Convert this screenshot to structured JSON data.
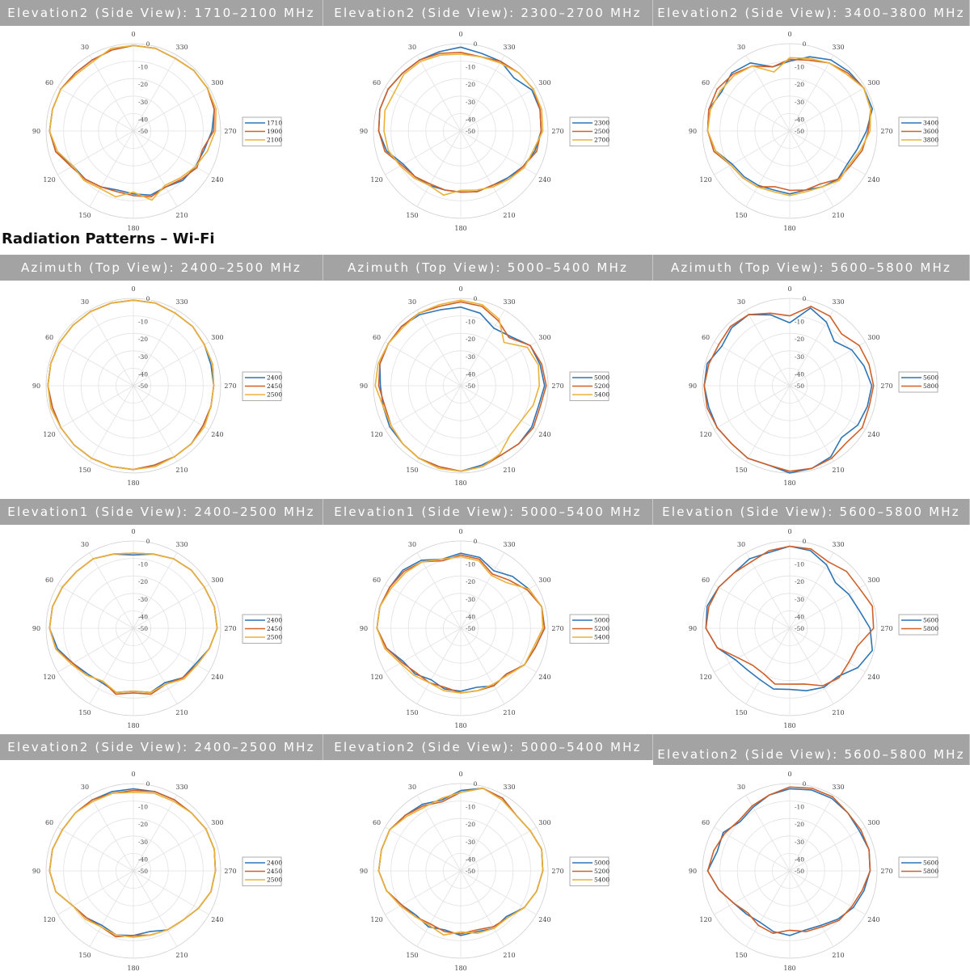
{
  "heading": "Radiation Patterns – Wi-Fi",
  "colors": [
    "#2e75b6",
    "#d0602a",
    "#e9b23a"
  ],
  "angle_ticks": [
    "0",
    "30",
    "60",
    "90",
    "120",
    "150",
    "180",
    "210",
    "240",
    "270",
    "300",
    "330"
  ],
  "radial_ticks": [
    "0",
    "-10",
    "-20",
    "-30",
    "-40",
    "-50"
  ],
  "chart_data": [
    {
      "type": "polar",
      "title": "Elevation2 (Side View): 1710–2100 MHz",
      "rlim": [
        -50,
        0
      ],
      "angle_step": 15,
      "legend": "right",
      "series": [
        {
          "name": "1710",
          "values": [
            -1,
            -2,
            -3,
            -3,
            -2,
            -2,
            -2,
            -4,
            -10,
            -11,
            -13,
            -15,
            -14,
            -12,
            -13,
            -10,
            -9,
            -8,
            -5,
            -2,
            -1,
            -1,
            -2,
            -1
          ]
        },
        {
          "name": "1900",
          "values": [
            -1,
            -2,
            -3,
            -3,
            -2,
            -2,
            -2,
            -4,
            -9,
            -11,
            -13,
            -14,
            -13,
            -11,
            -13,
            -11,
            -8,
            -9,
            -4,
            -2,
            -1,
            -1,
            -2,
            -1
          ]
        },
        {
          "name": "2100",
          "values": [
            -1,
            -1,
            -4,
            -4,
            -2,
            -2,
            -2,
            -5,
            -10,
            -10,
            -12,
            -11,
            -15,
            -9,
            -14,
            -12,
            -9,
            -6,
            -3,
            -1,
            -1,
            -1,
            -2,
            -1
          ]
        }
      ]
    },
    {
      "type": "polar",
      "title": "Elevation2 (Side View): 2300–2700 MHz",
      "rlim": [
        -50,
        0
      ],
      "angle_step": 15,
      "legend": "right",
      "series": [
        {
          "name": "2300",
          "values": [
            -2,
            -3,
            -3,
            -3,
            -2,
            -2,
            -3,
            -6,
            -12,
            -13,
            -14,
            -15,
            -15,
            -14,
            -14,
            -12,
            -9,
            -6,
            -4,
            -3,
            -3,
            -7,
            -4,
            -4
          ]
        },
        {
          "name": "2500",
          "values": [
            -5,
            -4,
            -3,
            -3,
            -2,
            -2,
            -3,
            -5,
            -11,
            -13,
            -15,
            -15,
            -15,
            -14,
            -14,
            -11,
            -9,
            -5,
            -4,
            -3,
            -2,
            -3,
            -4,
            -6
          ]
        },
        {
          "name": "2700",
          "values": [
            -6,
            -5,
            -4,
            -4,
            -6,
            -5,
            -6,
            -7,
            -10,
            -12,
            -14,
            -12,
            -16,
            -15,
            -13,
            -11,
            -8,
            -7,
            -3,
            -2,
            -2,
            -3,
            -5,
            -6
          ]
        }
      ]
    },
    {
      "type": "polar",
      "title": "Elevation2 (Side View): 3400–3800 MHz",
      "rlim": [
        -50,
        0
      ],
      "angle_step": 15,
      "legend": "right",
      "series": [
        {
          "name": "3400",
          "values": [
            -10,
            -12,
            -5,
            -3,
            -5,
            -2,
            -3,
            -6,
            -12,
            -13,
            -14,
            -15,
            -14,
            -15,
            -13,
            -11,
            -12,
            -10,
            -6,
            -1,
            -1,
            -2,
            -3,
            -6
          ]
        },
        {
          "name": "3600",
          "values": [
            -9,
            -12,
            -7,
            -4,
            -2,
            -2,
            -3,
            -5,
            -11,
            -12,
            -13,
            -17,
            -16,
            -15,
            -15,
            -11,
            -10,
            -7,
            -5,
            -2,
            -1,
            -3,
            -5,
            -8
          ]
        },
        {
          "name": "3800",
          "values": [
            -8,
            -15,
            -7,
            -5,
            -4,
            -3,
            -3,
            -6,
            -11,
            -12,
            -13,
            -14,
            -13,
            -14,
            -13,
            -10,
            -11,
            -8,
            -4,
            -2,
            -1,
            -4,
            -5,
            -7
          ]
        }
      ]
    },
    {
      "type": "polar",
      "title": "Azimuth (Top View): 2400–2500 MHz",
      "rlim": [
        -50,
        0
      ],
      "angle_step": 15,
      "legend": "right",
      "series": [
        {
          "name": "2400",
          "values": [
            -1,
            -1,
            -1,
            -1,
            -1,
            -1,
            -1,
            -2,
            -2,
            -2,
            -2,
            -2,
            -2,
            -3,
            -3,
            -3,
            -4,
            -4,
            -4,
            -4,
            -3,
            -2,
            -2,
            -1
          ]
        },
        {
          "name": "2450",
          "values": [
            -1,
            -1,
            -1,
            -1,
            -1,
            -1,
            -1,
            -2,
            -2,
            -2,
            -2,
            -2,
            -2,
            -3,
            -3,
            -3,
            -4,
            -4,
            -4,
            -3,
            -3,
            -2,
            -2,
            -1
          ]
        },
        {
          "name": "2500",
          "values": [
            -1,
            -1,
            -1,
            -1,
            -1,
            -1,
            -1,
            -1,
            -2,
            -2,
            -2,
            -2,
            -2,
            -2,
            -3,
            -3,
            -3,
            -4,
            -4,
            -3,
            -3,
            -2,
            -2,
            -1
          ]
        }
      ]
    },
    {
      "type": "polar",
      "title": "Azimuth (Top View): 5000–5400 MHz",
      "rlim": [
        -50,
        0
      ],
      "angle_step": 15,
      "legend": "right",
      "series": [
        {
          "name": "5000",
          "values": [
            -5,
            -5,
            -3,
            -2,
            -2,
            -2,
            -4,
            -4,
            -3,
            -3,
            -2,
            -2,
            -1,
            -3,
            -4,
            -3,
            -3,
            -4,
            -2,
            -3,
            -4,
            -10,
            -12,
            -7
          ]
        },
        {
          "name": "5200",
          "values": [
            -2,
            -3,
            -2,
            -2,
            -2,
            -2,
            -3,
            -5,
            -4,
            -3,
            -2,
            -2,
            -1,
            -2,
            -4,
            -3,
            -2,
            -3,
            -1,
            -2,
            -4,
            -11,
            -7,
            -3
          ]
        },
        {
          "name": "5400",
          "values": [
            -1,
            -2,
            -2,
            -3,
            -2,
            -1,
            -1,
            -4,
            -4,
            -3,
            -2,
            -1,
            -1,
            -2,
            -5,
            -10,
            -10,
            -7,
            -5,
            -4,
            -6,
            -15,
            -6,
            -2
          ]
        }
      ]
    },
    {
      "type": "polar",
      "title": "Azimuth (Top View): 5600–5800 MHz",
      "rlim": [
        -50,
        0
      ],
      "angle_step": 15,
      "legend": "right",
      "series": [
        {
          "name": "5600",
          "values": [
            -14,
            -8,
            -3,
            -3,
            -5,
            -1,
            -1,
            -2,
            -2,
            -3,
            -2,
            -3,
            0,
            -1,
            -3,
            -8,
            -5,
            -4,
            -3,
            -6,
            -9,
            -14,
            -8,
            -4
          ]
        },
        {
          "name": "5800",
          "values": [
            -10,
            -7,
            -3,
            -2,
            -3,
            -2,
            -1,
            -1,
            -2,
            -3,
            -2,
            -3,
            -1,
            -1,
            -2,
            -4,
            -2,
            -3,
            -2,
            -3,
            -4,
            -8,
            -4,
            -3
          ]
        }
      ]
    },
    {
      "type": "polar",
      "title": "Elevation1 (Side View): 2400–2500 MHz",
      "rlim": [
        -50,
        0
      ],
      "angle_step": 15,
      "legend": "right",
      "series": [
        {
          "name": "2400",
          "values": [
            -8,
            -6,
            -4,
            -4,
            -3,
            -2,
            -2,
            -5,
            -10,
            -13,
            -14,
            -12,
            -14,
            -12,
            -14,
            -10,
            -9,
            -5,
            -2,
            -2,
            -3,
            -3,
            -4,
            -6
          ]
        },
        {
          "name": "2450",
          "values": [
            -7,
            -6,
            -4,
            -4,
            -3,
            -2,
            -2,
            -4,
            -10,
            -12,
            -15,
            -11,
            -13,
            -11,
            -13,
            -10,
            -8,
            -5,
            -2,
            -2,
            -3,
            -3,
            -4,
            -6
          ]
        },
        {
          "name": "2500",
          "values": [
            -7,
            -6,
            -4,
            -4,
            -3,
            -2,
            -2,
            -4,
            -9,
            -12,
            -15,
            -12,
            -14,
            -12,
            -13,
            -9,
            -8,
            -5,
            -2,
            -2,
            -3,
            -3,
            -4,
            -6
          ]
        }
      ]
    },
    {
      "type": "polar",
      "title": "Elevation1 (Side View): 5000–5400 MHz",
      "rlim": [
        -50,
        0
      ],
      "angle_step": 15,
      "legend": "right",
      "series": [
        {
          "name": "5000",
          "values": [
            -7,
            -9,
            -5,
            -3,
            -3,
            -2,
            -2,
            -6,
            -12,
            -13,
            -16,
            -14,
            -14,
            -15,
            -12,
            -13,
            -8,
            -6,
            -2,
            -2,
            -5,
            -8,
            -12,
            -8
          ]
        },
        {
          "name": "5200",
          "values": [
            -8,
            -10,
            -6,
            -4,
            -3,
            -2,
            -2,
            -6,
            -11,
            -14,
            -14,
            -15,
            -13,
            -13,
            -12,
            -13,
            -8,
            -6,
            -2,
            -2,
            -6,
            -11,
            -14,
            -9
          ]
        },
        {
          "name": "5400",
          "values": [
            -9,
            -9,
            -6,
            -5,
            -4,
            -2,
            -2,
            -5,
            -10,
            -12,
            -14,
            -13,
            -13,
            -13,
            -13,
            -12,
            -8,
            -7,
            -3,
            -2,
            -5,
            -13,
            -15,
            -10
          ]
        }
      ]
    },
    {
      "type": "polar",
      "title": "Elevation (Side View): 5600–5800 MHz",
      "rlim": [
        -50,
        0
      ],
      "angle_step": 15,
      "legend": "right",
      "series": [
        {
          "name": "5600",
          "values": [
            -3,
            -5,
            -4,
            -5,
            -3,
            -1,
            -2,
            -7,
            -14,
            -16,
            -16,
            -14,
            -15,
            -13,
            -11,
            -11,
            -5,
            -1,
            -4,
            -9,
            -11,
            -13,
            -8,
            -4
          ]
        },
        {
          "name": "5800",
          "values": [
            -3,
            -4,
            -6,
            -5,
            -3,
            -2,
            -2,
            -7,
            -16,
            -20,
            -20,
            -17,
            -18,
            -17,
            -12,
            -10,
            -11,
            -10,
            -2,
            -1,
            -4,
            -4,
            -6,
            -3
          ]
        }
      ]
    },
    {
      "type": "polar",
      "title": "Elevation2 (Side View): 2400–2500 MHz",
      "rlim": [
        -50,
        0
      ],
      "angle_step": 15,
      "legend": "right",
      "series": [
        {
          "name": "2400",
          "values": [
            -3,
            -3,
            -3,
            -3,
            -3,
            -2,
            -2,
            -4,
            -10,
            -12,
            -14,
            -12,
            -13,
            -14,
            -11,
            -10,
            -7,
            -4,
            -3,
            -2,
            -2,
            -3,
            -3,
            -3
          ]
        },
        {
          "name": "2450",
          "values": [
            -4,
            -4,
            -3,
            -3,
            -3,
            -2,
            -2,
            -4,
            -10,
            -12,
            -13,
            -11,
            -13,
            -12,
            -11,
            -10,
            -7,
            -4,
            -3,
            -2,
            -2,
            -3,
            -3,
            -3
          ]
        },
        {
          "name": "2500",
          "values": [
            -5,
            -4,
            -4,
            -3,
            -3,
            -2,
            -2,
            -4,
            -10,
            -11,
            -13,
            -12,
            -12,
            -12,
            -11,
            -10,
            -7,
            -4,
            -3,
            -2,
            -2,
            -3,
            -4,
            -4
          ]
        }
      ]
    },
    {
      "type": "polar",
      "title": "Elevation2 (Side View): 5000–5400 MHz",
      "rlim": [
        -50,
        0
      ],
      "angle_step": 15,
      "legend": "right",
      "series": [
        {
          "name": "5000",
          "values": [
            -4,
            -8,
            -6,
            -5,
            -3,
            -3,
            -3,
            -6,
            -11,
            -14,
            -13,
            -15,
            -13,
            -14,
            -12,
            -13,
            -8,
            -5,
            -3,
            -2,
            -4,
            -5,
            -2,
            -1
          ]
        },
        {
          "name": "5200",
          "values": [
            -5,
            -9,
            -7,
            -5,
            -3,
            -3,
            -3,
            -6,
            -11,
            -13,
            -15,
            -14,
            -14,
            -15,
            -13,
            -12,
            -8,
            -5,
            -3,
            -2,
            -4,
            -5,
            -2,
            -1
          ]
        },
        {
          "name": "5400",
          "values": [
            -5,
            -7,
            -8,
            -6,
            -3,
            -3,
            -3,
            -6,
            -10,
            -13,
            -14,
            -12,
            -15,
            -13,
            -12,
            -12,
            -8,
            -5,
            -3,
            -2,
            -4,
            -5,
            -3,
            -1
          ]
        }
      ]
    },
    {
      "type": "polar",
      "title": "Elevation2 (Side View): 5600–5800 MHz",
      "rlim": [
        -50,
        0
      ],
      "angle_step": 15,
      "legend": "right",
      "series": [
        {
          "name": "5600",
          "values": [
            -3,
            -5,
            -8,
            -10,
            -6,
            -7,
            -3,
            -8,
            -13,
            -15,
            -16,
            -14,
            -13,
            -15,
            -14,
            -11,
            -8,
            -6,
            -4,
            -3,
            -4,
            -3,
            -2,
            -2
          ]
        },
        {
          "name": "5800",
          "values": [
            -2,
            -5,
            -7,
            -9,
            -7,
            -5,
            -3,
            -8,
            -13,
            -16,
            -14,
            -13,
            -16,
            -14,
            -13,
            -10,
            -9,
            -7,
            -4,
            -3,
            -3,
            -3,
            -1,
            -1
          ]
        }
      ]
    }
  ]
}
